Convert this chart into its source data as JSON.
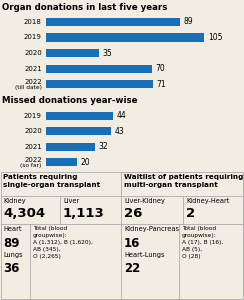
{
  "title1": "Organ donations in last five years",
  "donations": {
    "years": [
      "2018",
      "2019",
      "2020",
      "2021",
      "2022\n(till date)"
    ],
    "values": [
      89,
      105,
      35,
      70,
      71
    ],
    "max_val": 105
  },
  "title2": "Missed donations year-wise",
  "missed": {
    "years": [
      "2019",
      "2020",
      "2021",
      "2022\n(so far)"
    ],
    "values": [
      44,
      43,
      32,
      20
    ],
    "max_val": 105
  },
  "bar_color": "#1a6eb5",
  "bg_color": "#f2ede3",
  "single_title": "Patients requiring\nsingle-organ transplant",
  "single_extra": "Total (blood\ngroupwise):\nA (1,312), B (1,620),\nAB (345),\nO (2,265)",
  "multi_title": "Waitlist of patients requiring\nmulti-organ transplant",
  "multi_extra": "Total (blood\ngroupwise):\nA (17), B (16),\nAB (5),\nO (28)"
}
